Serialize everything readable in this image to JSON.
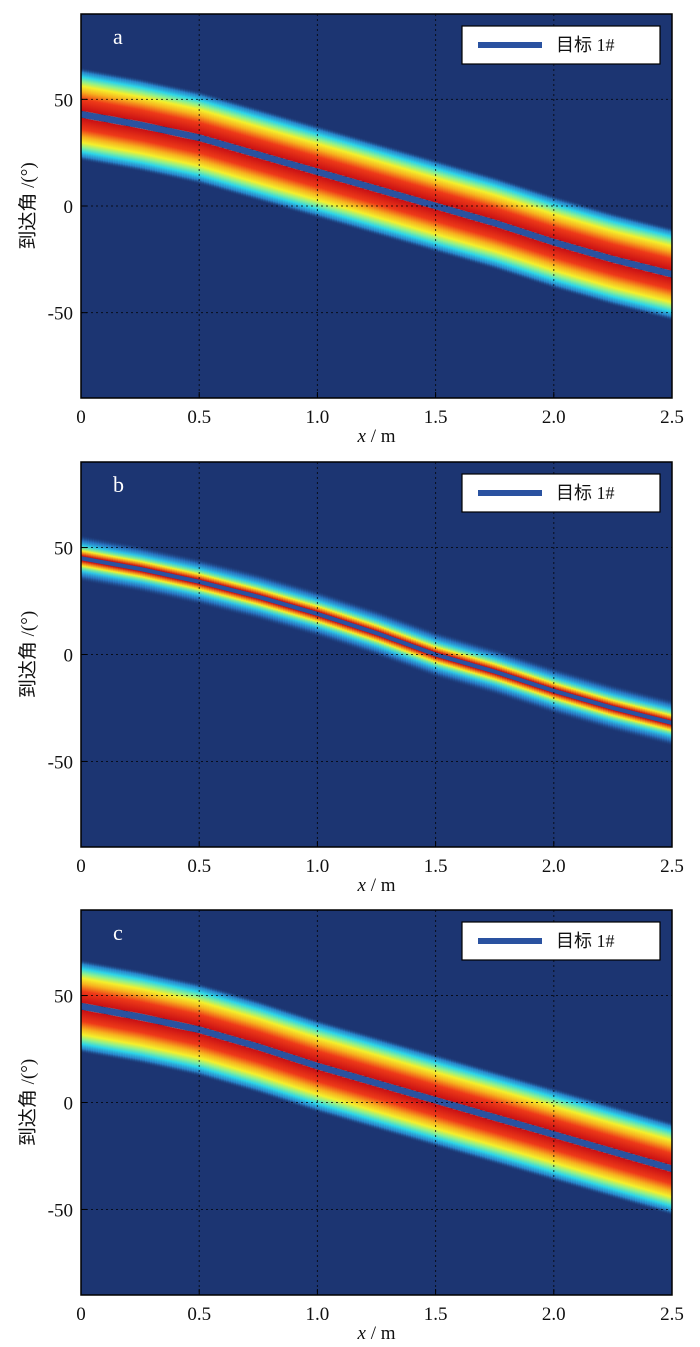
{
  "chart_data": [
    {
      "type": "heatmap",
      "panel_label": "a",
      "xlabel_var": "x",
      "xlabel_unit": " / m",
      "ylabel": "到达角 /(°)",
      "xlim": [
        0,
        2.5
      ],
      "ylim": [
        -90,
        90
      ],
      "xticks": [
        0,
        0.5,
        1.0,
        1.5,
        2.0,
        2.5
      ],
      "xtick_labels": [
        "0",
        "0.5",
        "1.0",
        "1.5",
        "2.0",
        "2.5"
      ],
      "yticks": [
        50,
        0,
        -50
      ],
      "ytick_labels": [
        "50",
        "0",
        "-50"
      ],
      "grid": true,
      "legend_position": "top-right",
      "series": [
        {
          "name": "目标 1#",
          "color": "#2a52a0",
          "x": [
            0,
            0.25,
            0.5,
            0.75,
            1.0,
            1.25,
            1.5,
            1.75,
            2.0,
            2.25,
            2.5
          ],
          "y": [
            43,
            38,
            32,
            24,
            16,
            8,
            0,
            -8,
            -17,
            -25,
            -32
          ]
        }
      ],
      "band_halfwidth_deg": 10,
      "colormap": "jet"
    },
    {
      "type": "heatmap",
      "panel_label": "b",
      "xlabel_var": "x",
      "xlabel_unit": " / m",
      "ylabel": "到达角 /(°)",
      "xlim": [
        0,
        2.5
      ],
      "ylim": [
        -90,
        90
      ],
      "xticks": [
        0,
        0.5,
        1.0,
        1.5,
        2.0,
        2.5
      ],
      "xtick_labels": [
        "0",
        "0.5",
        "1.0",
        "1.5",
        "2.0",
        "2.5"
      ],
      "yticks": [
        50,
        0,
        -50
      ],
      "ytick_labels": [
        "50",
        "0",
        "-50"
      ],
      "grid": true,
      "legend_position": "top-right",
      "series": [
        {
          "name": "目标 1#",
          "color": "#2a52a0",
          "x": [
            0,
            0.25,
            0.5,
            0.75,
            1.0,
            1.25,
            1.5,
            1.75,
            2.0,
            2.25,
            2.5
          ],
          "y": [
            45,
            40,
            34,
            27,
            19,
            10,
            0,
            -8,
            -17,
            -25,
            -32
          ]
        }
      ],
      "band_halfwidth_deg": 5,
      "colormap": "jet"
    },
    {
      "type": "heatmap",
      "panel_label": "c",
      "xlabel_var": "x",
      "xlabel_unit": " / m",
      "ylabel": "到达角 /(°)",
      "xlim": [
        0,
        2.5
      ],
      "ylim": [
        -90,
        90
      ],
      "xticks": [
        0,
        0.5,
        1.0,
        1.5,
        2.0,
        2.5
      ],
      "xtick_labels": [
        "0",
        "0.5",
        "1.0",
        "1.5",
        "2.0",
        "2.5"
      ],
      "yticks": [
        50,
        0,
        -50
      ],
      "ytick_labels": [
        "50",
        "0",
        "-50"
      ],
      "grid": true,
      "legend_position": "top-right",
      "series": [
        {
          "name": "目标 1#",
          "color": "#2a52a0",
          "x": [
            0,
            0.25,
            0.5,
            0.75,
            1.0,
            1.25,
            1.5,
            1.75,
            2.0,
            2.25,
            2.5
          ],
          "y": [
            45,
            40,
            34,
            26,
            17,
            9,
            1,
            -7,
            -15,
            -23,
            -31
          ]
        }
      ],
      "band_halfwidth_deg": 10,
      "colormap": "jet"
    }
  ]
}
